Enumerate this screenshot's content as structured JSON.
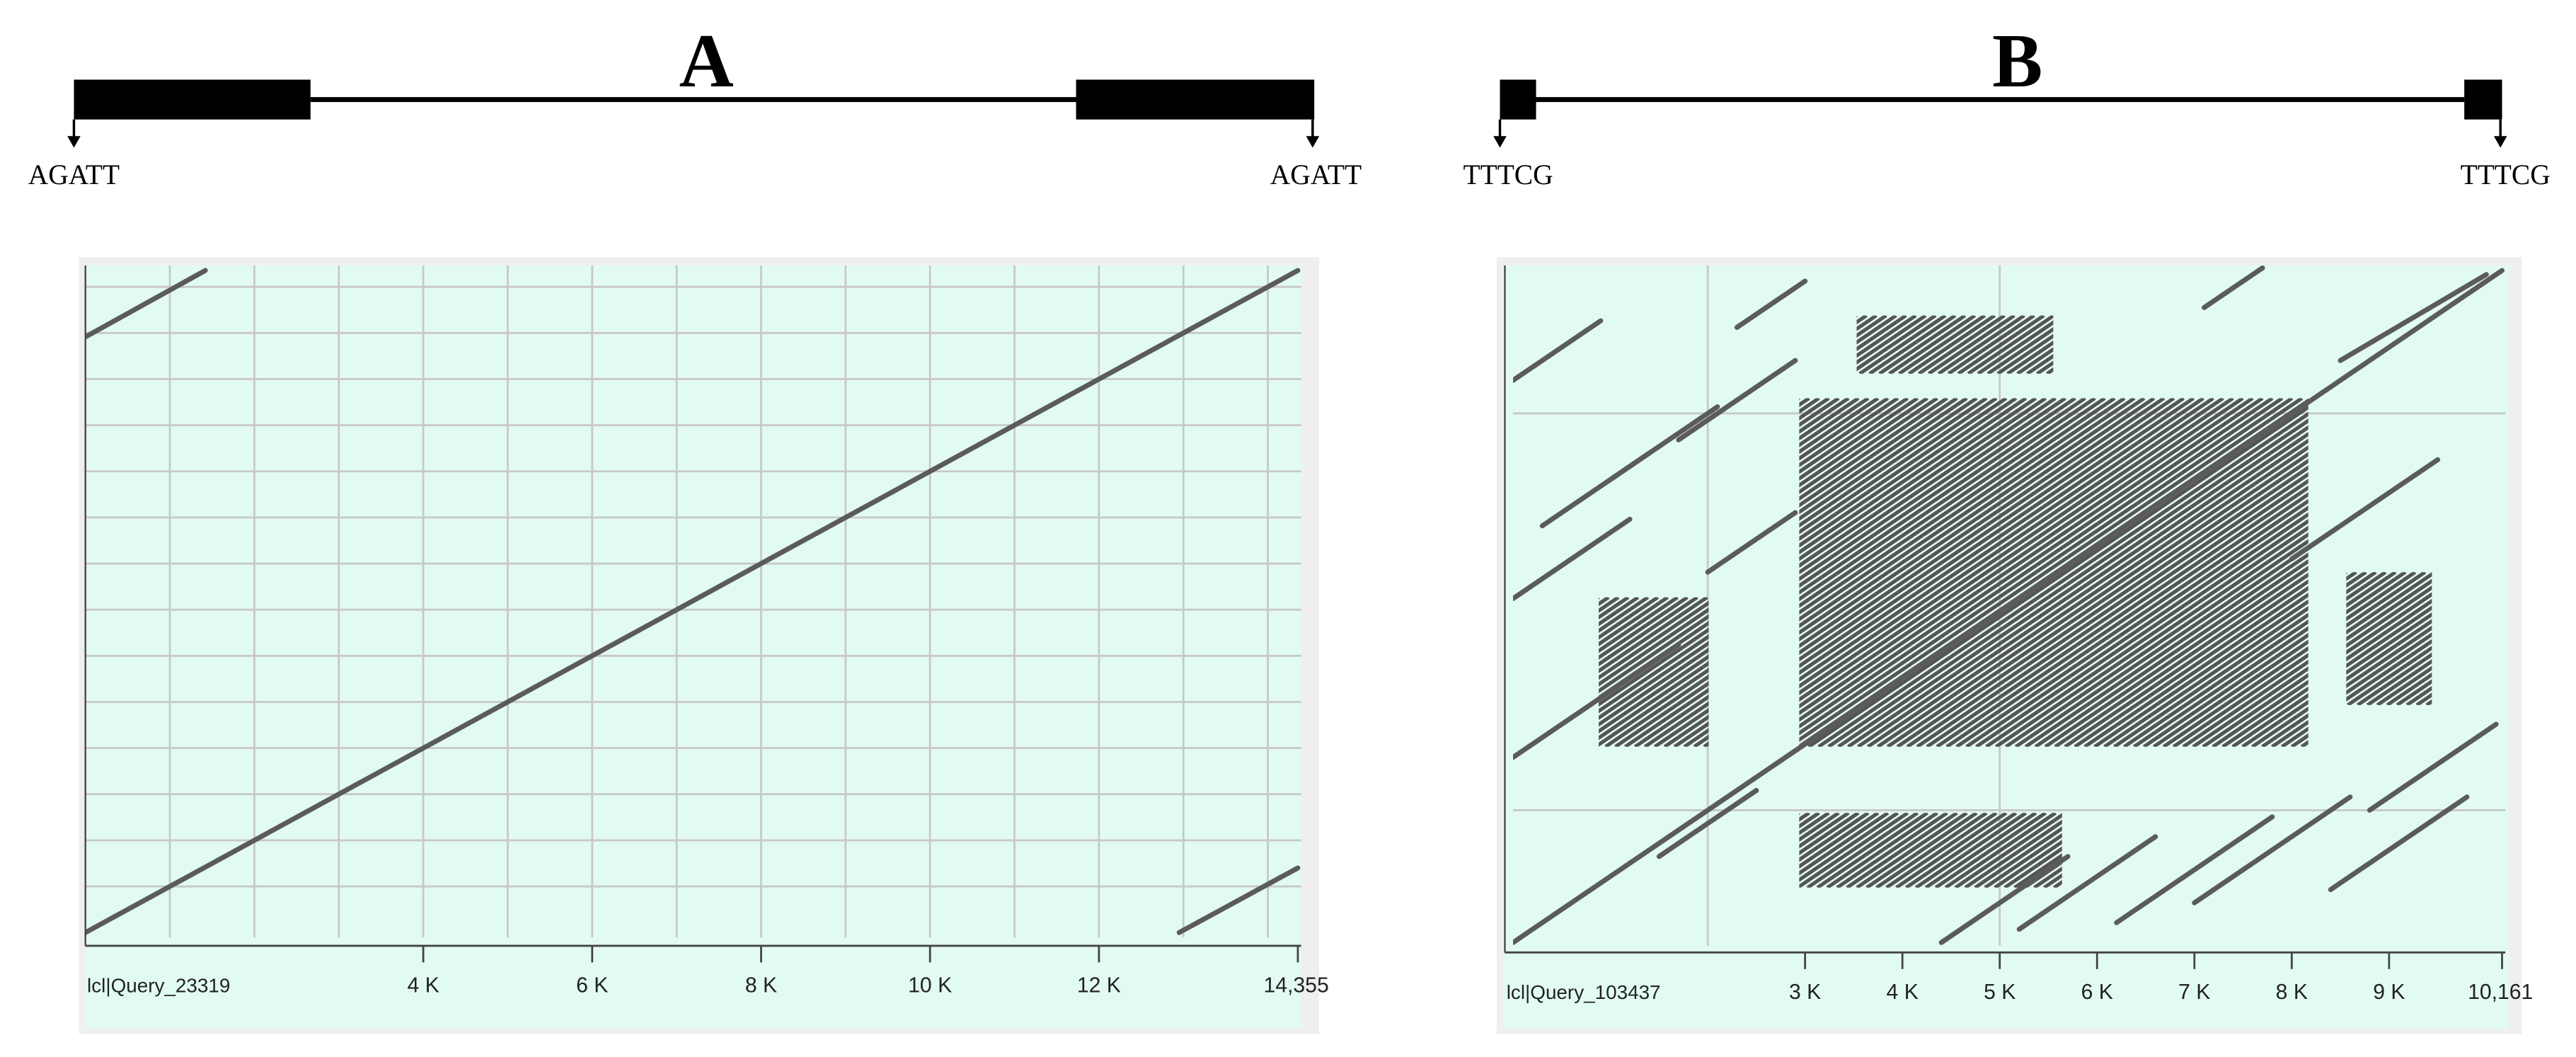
{
  "chart_data": [
    {
      "type": "dotplot",
      "title": "A",
      "annotations": [
        "AGATT",
        "AGATT"
      ],
      "x_label": "lcl|Query_23319",
      "xlim": [
        0,
        14355
      ],
      "ylim": [
        0,
        14355
      ],
      "xticks": [
        {
          "value": 4000,
          "label": "4 K"
        },
        {
          "value": 6000,
          "label": "6 K"
        },
        {
          "value": 8000,
          "label": "8 K"
        },
        {
          "value": 10000,
          "label": "10 K"
        },
        {
          "value": 12000,
          "label": "12 K"
        },
        {
          "value": 14355,
          "label": "14,355"
        }
      ],
      "xgrid": [
        1000,
        2000,
        3000,
        4000,
        5000,
        6000,
        7000,
        8000,
        9000,
        10000,
        11000,
        12000,
        13000,
        14000
      ],
      "ygrid": [
        1000,
        2000,
        3000,
        4000,
        5000,
        6000,
        7000,
        8000,
        9000,
        10000,
        11000,
        12000,
        13000,
        14000
      ],
      "segments": {
        "x": [
          [
            0,
            14355
          ],
          [
            0,
            1420
          ],
          [
            12950,
            14355
          ]
        ],
        "y": [
          [
            0,
            14355
          ],
          [
            12915,
            14355
          ],
          [
            0,
            1400
          ]
        ]
      },
      "blocks": {
        "x": [],
        "y": []
      }
    },
    {
      "type": "dotplot",
      "title": "B",
      "annotations": [
        "TTTCG",
        "TTTCG"
      ],
      "x_label": "lcl|Query_103437",
      "xlim": [
        0,
        10161
      ],
      "ylim": [
        0,
        10161
      ],
      "xticks": [
        {
          "value": 3000,
          "label": "3 K"
        },
        {
          "value": 4000,
          "label": "4 K"
        },
        {
          "value": 5000,
          "label": "5 K"
        },
        {
          "value": 6000,
          "label": "6 K"
        },
        {
          "value": 7000,
          "label": "7 K"
        },
        {
          "value": 8000,
          "label": "8 K"
        },
        {
          "value": 9000,
          "label": "9 K"
        },
        {
          "value": 10161,
          "label": "10,161"
        }
      ],
      "xgrid": [
        2000,
        5000
      ],
      "ygrid": [
        2000,
        8000
      ],
      "segments": {
        "x": [
          [
            0,
            10161
          ],
          [
            0,
            1200
          ],
          [
            0,
            900
          ],
          [
            300,
            1400
          ],
          [
            1000,
            2100
          ],
          [
            1700,
            2900
          ],
          [
            2000,
            2900
          ],
          [
            4400,
            5700
          ],
          [
            5200,
            6600
          ],
          [
            6200,
            7800
          ],
          [
            7000,
            8600
          ],
          [
            8400,
            9800
          ],
          [
            8800,
            10100
          ],
          [
            8000,
            9500
          ],
          [
            8500,
            10000
          ],
          [
            7100,
            7700
          ],
          [
            2300,
            3000
          ],
          [
            0,
            1700
          ],
          [
            1500,
            2500
          ],
          [
            2700,
            3400
          ]
        ],
        "y": [
          [
            0,
            10161
          ],
          [
            5200,
            6400
          ],
          [
            8500,
            9400
          ],
          [
            6300,
            7400
          ],
          [
            7000,
            8100
          ],
          [
            7600,
            8800
          ],
          [
            5600,
            6500
          ],
          [
            0,
            1300
          ],
          [
            200,
            1600
          ],
          [
            300,
            1900
          ],
          [
            600,
            2200
          ],
          [
            800,
            2200
          ],
          [
            2000,
            3300
          ],
          [
            5800,
            7300
          ],
          [
            8800,
            10100
          ],
          [
            9600,
            10200
          ],
          [
            9300,
            10000
          ],
          [
            2800,
            4500
          ],
          [
            1300,
            2300
          ],
          [
            2700,
            3400
          ]
        ]
      },
      "blocks": {
        "x": [
          [
            2940,
            8170
          ],
          [
            880,
            2010
          ],
          [
            3530,
            5550
          ],
          [
            2940,
            5640
          ],
          [
            8560,
            9440
          ]
        ],
        "y": [
          [
            2960,
            8230
          ],
          [
            2960,
            5220
          ],
          [
            8600,
            9480
          ],
          [
            830,
            1960
          ],
          [
            3590,
            5600
          ]
        ]
      }
    }
  ]
}
